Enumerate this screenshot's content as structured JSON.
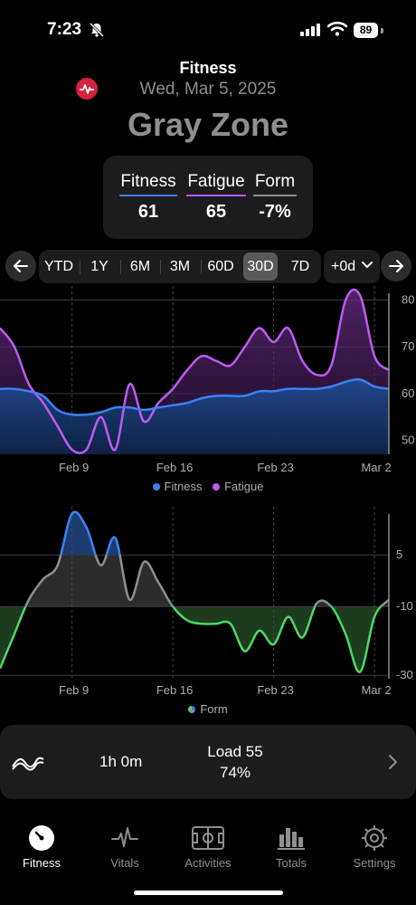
{
  "status_bar": {
    "time": "7:23",
    "battery": "89"
  },
  "header": {
    "title": "Fitness",
    "date": "Wed, Mar 5, 2025",
    "zone": "Gray Zone",
    "zone_color": "#8e8e93",
    "logo_color": "#d6223f"
  },
  "stats": [
    {
      "label": "Fitness",
      "value": "61",
      "color": "#3b82f6"
    },
    {
      "label": "Fatigue",
      "value": "65",
      "color": "#bf5af2"
    },
    {
      "label": "Form",
      "value": "-7%",
      "color": "#8e8e93"
    }
  ],
  "range": {
    "options": [
      "YTD",
      "1Y",
      "6M",
      "3M",
      "60D",
      "30D",
      "7D"
    ],
    "selected": "30D",
    "offset": "+0d"
  },
  "chart_data": [
    {
      "type": "area",
      "x": [
        "Feb 4",
        "Feb 5",
        "Feb 6",
        "Feb 7",
        "Feb 8",
        "Feb 9",
        "Feb 10",
        "Feb 11",
        "Feb 12",
        "Feb 13",
        "Feb 14",
        "Feb 15",
        "Feb 16",
        "Feb 17",
        "Feb 18",
        "Feb 19",
        "Feb 20",
        "Feb 21",
        "Feb 22",
        "Feb 23",
        "Feb 24",
        "Feb 25",
        "Feb 26",
        "Feb 27",
        "Feb 28",
        "Mar 1",
        "Mar 2",
        "Mar 3"
      ],
      "x_ticks": [
        "Feb 9",
        "Feb 16",
        "Feb 23",
        "Mar 2"
      ],
      "y_ticks": [
        50,
        60,
        70,
        80
      ],
      "ylim": [
        47,
        83
      ],
      "series": [
        {
          "name": "Fitness",
          "color": "#3b82f6",
          "values": [
            61,
            61,
            60.5,
            59.5,
            56.5,
            55.5,
            55.5,
            56,
            57,
            57,
            56.5,
            57,
            57.5,
            58,
            59,
            59.5,
            59.5,
            59.5,
            60.5,
            60.5,
            61,
            61,
            61,
            61.5,
            62.5,
            63,
            61.5,
            61
          ]
        },
        {
          "name": "Fatigue",
          "color": "#bf5af2",
          "values": [
            74,
            70,
            62,
            58,
            53,
            48,
            48,
            55,
            48,
            62,
            54,
            58,
            61,
            65,
            68,
            67,
            66,
            70,
            74,
            71,
            74,
            67,
            64,
            66,
            80,
            81,
            68,
            65
          ]
        }
      ]
    },
    {
      "type": "area",
      "x": [
        "Feb 4",
        "Feb 5",
        "Feb 6",
        "Feb 7",
        "Feb 8",
        "Feb 9",
        "Feb 10",
        "Feb 11",
        "Feb 12",
        "Feb 13",
        "Feb 14",
        "Feb 15",
        "Feb 16",
        "Feb 17",
        "Feb 18",
        "Feb 19",
        "Feb 20",
        "Feb 21",
        "Feb 22",
        "Feb 23",
        "Feb 24",
        "Feb 25",
        "Feb 26",
        "Feb 27",
        "Feb 28",
        "Mar 1",
        "Mar 2",
        "Mar 3"
      ],
      "x_ticks": [
        "Feb 9",
        "Feb 16",
        "Feb 23",
        "Mar 2"
      ],
      "y_ticks": [
        5,
        -10,
        -30
      ],
      "ylim": [
        -31,
        19
      ],
      "series": [
        {
          "name": "Form",
          "color": "#8e8e93",
          "values": [
            -28,
            -18,
            -8,
            -2,
            2,
            17,
            13,
            2,
            10,
            -8,
            3,
            -3,
            -10,
            -14,
            -15,
            -15,
            -15,
            -23,
            -17,
            -21,
            -13,
            -19,
            -9,
            -10,
            -18,
            -29,
            -13,
            -8
          ]
        }
      ],
      "zones": [
        {
          "name": "Blue",
          "min": 5,
          "color": "#3b82f6"
        },
        {
          "name": "Gray",
          "min": -10,
          "max": 5,
          "color": "#8e8e93"
        },
        {
          "name": "Green",
          "max": -10,
          "color": "#4cd964"
        }
      ]
    }
  ],
  "legend1": {
    "fitness": "Fitness",
    "fatigue": "Fatigue"
  },
  "legend2": {
    "form": "Form"
  },
  "summary": {
    "duration": "1h 0m",
    "load": "Load 55",
    "percent": "74%"
  },
  "tabs": [
    {
      "label": "Fitness",
      "icon": "speedometer-icon",
      "active": true
    },
    {
      "label": "Vitals",
      "icon": "heartbeat-icon",
      "active": false
    },
    {
      "label": "Activities",
      "icon": "field-icon",
      "active": false
    },
    {
      "label": "Totals",
      "icon": "bar-chart-icon",
      "active": false
    },
    {
      "label": "Settings",
      "icon": "gear-icon",
      "active": false
    }
  ]
}
